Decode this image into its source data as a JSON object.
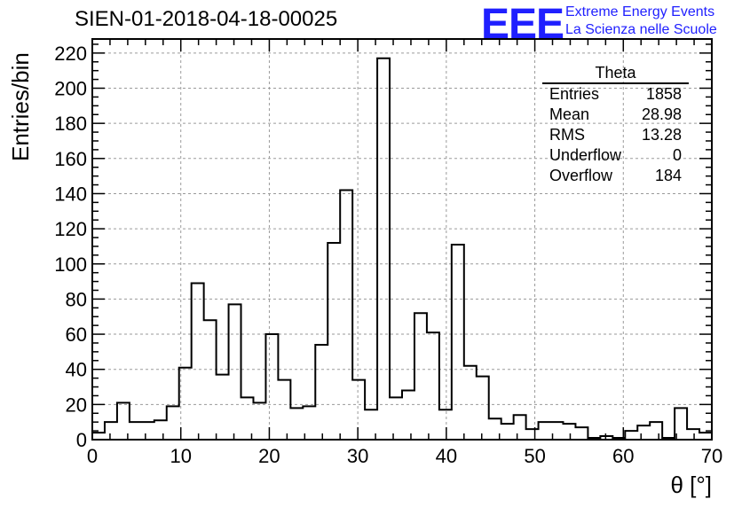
{
  "header": {
    "title": "SIEN-01-2018-04-18-00025",
    "logo": "EEE",
    "logo_line1": "Extreme Energy Events",
    "logo_line2": "La Scienza nelle Scuole"
  },
  "stats": {
    "name": "Theta",
    "rows": [
      {
        "label": "Entries",
        "value": "1858"
      },
      {
        "label": "Mean",
        "value": "28.98"
      },
      {
        "label": "RMS",
        "value": "13.28"
      },
      {
        "label": "Underflow",
        "value": "0"
      },
      {
        "label": "Overflow",
        "value": "184"
      }
    ]
  },
  "chart_data": {
    "type": "bar",
    "title": "SIEN-01-2018-04-18-00025",
    "xlabel": "θ [°]",
    "ylabel": "Entries/bin",
    "xlim": [
      0,
      70
    ],
    "ylim": [
      0,
      228
    ],
    "bin_width": 1.4,
    "x_ticks": [
      0,
      10,
      20,
      30,
      40,
      50,
      60,
      70
    ],
    "y_ticks": [
      0,
      20,
      40,
      60,
      80,
      100,
      120,
      140,
      160,
      180,
      200,
      220
    ],
    "grid": true,
    "legend": "top-right",
    "values": [
      4,
      10,
      21,
      10,
      10,
      11,
      19,
      41,
      89,
      68,
      37,
      77,
      24,
      21,
      60,
      34,
      18,
      19,
      54,
      112,
      142,
      34,
      17,
      217,
      24,
      28,
      72,
      61,
      17,
      111,
      42,
      36,
      12,
      9,
      14,
      6,
      10,
      10,
      9,
      7,
      1,
      2,
      1,
      5,
      8,
      10,
      1,
      18,
      6,
      4
    ]
  }
}
